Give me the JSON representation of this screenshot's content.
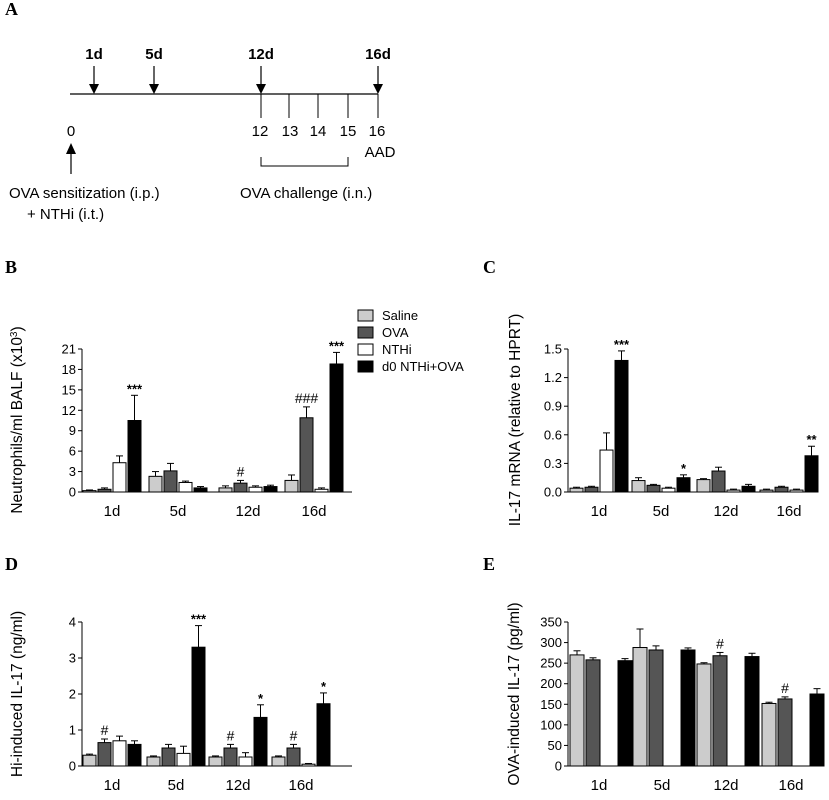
{
  "colors": {
    "saline": "#cccccc",
    "ova": "#555555",
    "nthi": "#ffffff",
    "combo": "#000000"
  },
  "panel_labels": {
    "a": "A",
    "b": "B",
    "c": "C",
    "d": "D",
    "e": "E"
  },
  "timeline": {
    "top_days": [
      "1d",
      "5d",
      "12d",
      "16d"
    ],
    "bottom_ticks": [
      "0",
      "12",
      "13",
      "14",
      "15",
      "16"
    ],
    "aad_label": "AAD",
    "sensitization_line1": "OVA sensitization (i.p.)",
    "sensitization_line2": "+ NTHi (i.t.)",
    "challenge_label": "OVA challenge (i.n.)"
  },
  "legend": [
    "Saline",
    "OVA",
    "NTHi",
    "d0 NTHi+OVA"
  ],
  "chart_data": [
    {
      "id": "B",
      "type": "bar",
      "ylabel": "Neutrophils/ml BALF (x10³)",
      "ylim": [
        0,
        21
      ],
      "yticks": [
        "0",
        "3",
        "6",
        "9",
        "12",
        "15",
        "18",
        "21"
      ],
      "categories": [
        "1d",
        "5d",
        "12d",
        "16d"
      ],
      "series": [
        {
          "name": "Saline",
          "values": [
            0.2,
            2.3,
            0.6,
            1.7
          ],
          "err": [
            0.1,
            0.7,
            0.3,
            0.8
          ]
        },
        {
          "name": "OVA",
          "values": [
            0.4,
            3.1,
            1.3,
            10.9
          ],
          "err": [
            0.2,
            1.1,
            0.4,
            1.6
          ]
        },
        {
          "name": "NTHi",
          "values": [
            4.3,
            1.4,
            0.7,
            0.4
          ],
          "err": [
            1.0,
            0.2,
            0.2,
            0.2
          ]
        },
        {
          "name": "d0 NTHi+OVA",
          "values": [
            10.5,
            0.6,
            0.8,
            18.8
          ],
          "err": [
            3.7,
            0.2,
            0.2,
            1.7
          ]
        }
      ],
      "annotations": [
        {
          "category": 0,
          "series": 3,
          "text": "***"
        },
        {
          "category": 2,
          "series": 1,
          "text": "#"
        },
        {
          "category": 3,
          "series": 1,
          "text": "###"
        },
        {
          "category": 3,
          "series": 3,
          "text": "***"
        }
      ]
    },
    {
      "id": "C",
      "type": "bar",
      "ylabel": "IL-17 mRNA (relative to HPRT)",
      "ylim": [
        0,
        1.5
      ],
      "yticks": [
        "0.0",
        "0.3",
        "0.6",
        "0.9",
        "1.2",
        "1.5"
      ],
      "categories": [
        "1d",
        "5d",
        "12d",
        "16d"
      ],
      "series": [
        {
          "name": "Saline",
          "values": [
            0.04,
            0.12,
            0.13,
            0.02
          ],
          "err": [
            0.01,
            0.03,
            0.01,
            0.01
          ]
        },
        {
          "name": "OVA",
          "values": [
            0.05,
            0.07,
            0.22,
            0.05
          ],
          "err": [
            0.01,
            0.01,
            0.04,
            0.01
          ]
        },
        {
          "name": "NTHi",
          "values": [
            0.44,
            0.04,
            0.02,
            0.02
          ],
          "err": [
            0.18,
            0.01,
            0.01,
            0.01
          ]
        },
        {
          "name": "d0 NTHi+OVA",
          "values": [
            1.38,
            0.15,
            0.06,
            0.38
          ],
          "err": [
            0.1,
            0.03,
            0.02,
            0.1
          ]
        }
      ],
      "annotations": [
        {
          "category": 0,
          "series": 3,
          "text": "***"
        },
        {
          "category": 1,
          "series": 3,
          "text": "*"
        },
        {
          "category": 3,
          "series": 3,
          "text": "**"
        }
      ]
    },
    {
      "id": "D",
      "type": "bar",
      "ylabel": "Hi-induced IL-17 (ng/ml)",
      "ylim": [
        0,
        4
      ],
      "yticks": [
        "0",
        "1",
        "2",
        "3",
        "4"
      ],
      "categories": [
        "1d",
        "5d",
        "12d",
        "16d"
      ],
      "series": [
        {
          "name": "Saline",
          "values": [
            0.3,
            0.25,
            0.25,
            0.25
          ],
          "err": [
            0.03,
            0.03,
            0.03,
            0.03
          ]
        },
        {
          "name": "OVA",
          "values": [
            0.65,
            0.5,
            0.5,
            0.5
          ],
          "err": [
            0.1,
            0.1,
            0.1,
            0.1
          ]
        },
        {
          "name": "NTHi",
          "values": [
            0.7,
            0.35,
            0.25,
            0.05
          ],
          "err": [
            0.13,
            0.2,
            0.12,
            0.02
          ]
        },
        {
          "name": "d0 NTHi+OVA",
          "values": [
            0.6,
            3.3,
            1.35,
            1.73
          ],
          "err": [
            0.1,
            0.6,
            0.35,
            0.3
          ]
        }
      ],
      "annotations": [
        {
          "category": 0,
          "series": 1,
          "text": "#"
        },
        {
          "category": 1,
          "series": 3,
          "text": "***"
        },
        {
          "category": 2,
          "series": 1,
          "text": "#"
        },
        {
          "category": 2,
          "series": 3,
          "text": "*"
        },
        {
          "category": 3,
          "series": 1,
          "text": "#"
        },
        {
          "category": 3,
          "series": 3,
          "text": "*"
        }
      ]
    },
    {
      "id": "E",
      "type": "bar",
      "ylabel": "OVA-induced IL-17 (pg/ml)",
      "ylim": [
        0,
        350
      ],
      "yticks": [
        "0",
        "50",
        "100",
        "150",
        "200",
        "250",
        "300",
        "350"
      ],
      "categories": [
        "1d",
        "5d",
        "12d",
        "16d"
      ],
      "series": [
        {
          "name": "Saline",
          "values": [
            270,
            288,
            248,
            152
          ],
          "err": [
            10,
            45,
            3,
            3
          ]
        },
        {
          "name": "OVA",
          "values": [
            258,
            282,
            268,
            163
          ],
          "err": [
            5,
            10,
            8,
            5
          ]
        },
        {
          "name": "NTHi",
          "values": [
            0,
            0,
            0,
            0
          ],
          "err": [
            0,
            0,
            0,
            0
          ]
        },
        {
          "name": "d0 NTHi+OVA",
          "values": [
            256,
            282,
            266,
            175
          ],
          "err": [
            5,
            5,
            8,
            13
          ]
        }
      ],
      "annotations": [
        {
          "category": 2,
          "series": 1,
          "text": "#"
        },
        {
          "category": 3,
          "series": 1,
          "text": "#"
        }
      ]
    }
  ]
}
